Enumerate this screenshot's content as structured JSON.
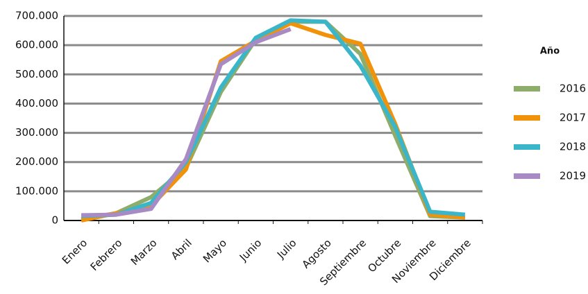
{
  "chart_data": {
    "type": "line",
    "categories": [
      "Enero",
      "Febrero",
      "Marzo",
      "Abril",
      "Mayo",
      "Junio",
      "Julio",
      "Agosto",
      "Septiembre",
      "Octubre",
      "Noviembre",
      "Diciembre"
    ],
    "series": [
      {
        "name": "2016",
        "color": "#8fad6a",
        "values": [
          5000,
          25000,
          80000,
          180000,
          440000,
          620000,
          680000,
          680000,
          570000,
          290000,
          15000,
          10000
        ]
      },
      {
        "name": "2017",
        "color": "#f0920a",
        "values": [
          0,
          25000,
          50000,
          175000,
          545000,
          615000,
          675000,
          635000,
          605000,
          330000,
          20000,
          10000
        ]
      },
      {
        "name": "2018",
        "color": "#3bb5c8",
        "values": [
          15000,
          20000,
          60000,
          200000,
          455000,
          625000,
          685000,
          680000,
          530000,
          320000,
          30000,
          20000
        ]
      },
      {
        "name": "2019",
        "color": "#a88bc4",
        "values": [
          18000,
          20000,
          40000,
          210000,
          535000,
          610000,
          655000,
          null,
          null,
          null,
          null,
          null
        ]
      }
    ],
    "ylim": [
      0,
      700000
    ],
    "yticks": [
      0,
      {
        "value": 100000,
        "label": "100.000"
      },
      {
        "value": 200000,
        "label": "200.000"
      },
      {
        "value": 300000,
        "label": "300.000"
      },
      {
        "value": 400000,
        "label": "400.000"
      },
      {
        "value": 500000,
        "label": "500.000"
      },
      {
        "value": 600000,
        "label": "600.000"
      },
      {
        "value": 700000,
        "label": "700.000"
      }
    ],
    "grid": true,
    "legend_title": "Año",
    "legend": "right"
  }
}
